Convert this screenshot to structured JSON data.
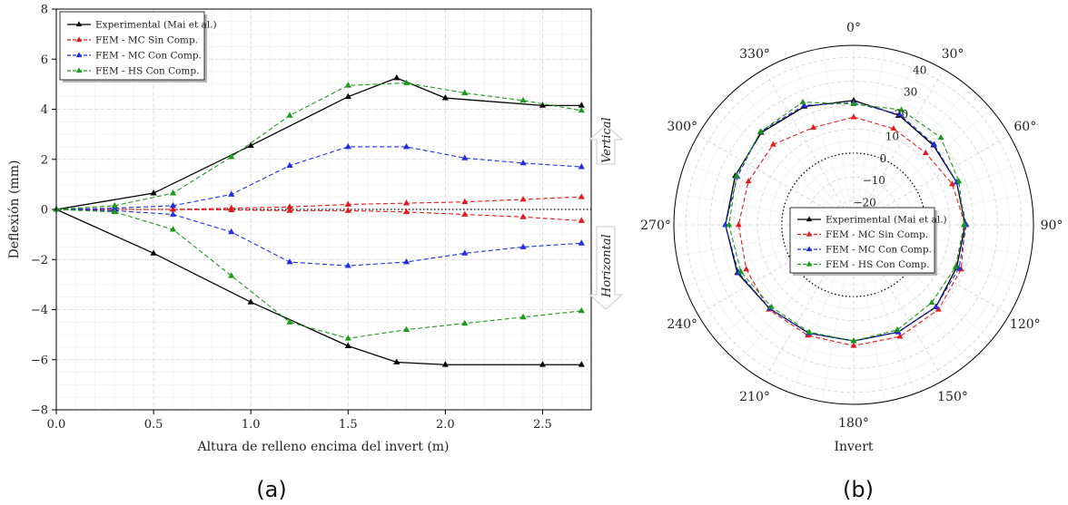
{
  "colors": {
    "experimental": "#000000",
    "mc_sin": "#e41a1c",
    "mc_con": "#1f2fe6",
    "hs_con": "#1a9a1a"
  },
  "chart_data": [
    {
      "type": "line",
      "panel_label": "(a)",
      "xlabel": "Altura de relleno encima del invert (m)",
      "ylabel": "Deflexión (mm)",
      "xlim": [
        0,
        2.75
      ],
      "ylim": [
        -8,
        8
      ],
      "xticks": [
        0.0,
        0.5,
        1.0,
        1.5,
        2.0,
        2.5
      ],
      "xtick_labels": [
        "0.0",
        "0.5",
        "1.0",
        "1.5",
        "2.0",
        "2.5"
      ],
      "yticks": [
        -8,
        -6,
        -4,
        -2,
        0,
        2,
        4,
        6,
        8
      ],
      "ytick_labels": [
        "−8",
        "−6",
        "−4",
        "−2",
        "0",
        "2",
        "4",
        "6",
        "8"
      ],
      "grid": true,
      "legend_position": "top-left",
      "annotations": {
        "vertical": "Vertical",
        "horizontal": "Horizontal"
      },
      "series": [
        {
          "name": "Experimental (Mai et al.)",
          "color_key": "experimental",
          "dash": "solid",
          "groups": [
            {
              "x": [
                0,
                0.5,
                1.0,
                1.5,
                1.75,
                2.0,
                2.5,
                2.7
              ],
              "y": [
                0,
                0.65,
                2.55,
                4.5,
                5.25,
                4.45,
                4.15,
                4.15
              ]
            },
            {
              "x": [
                0,
                0.5,
                1.0,
                1.5,
                1.75,
                2.0,
                2.5,
                2.7
              ],
              "y": [
                0,
                -1.75,
                -3.7,
                -5.45,
                -6.1,
                -6.2,
                -6.2,
                -6.2
              ]
            }
          ]
        },
        {
          "name": "FEM - MC Sin Comp.",
          "color_key": "mc_sin",
          "dash": "dashed",
          "groups": [
            {
              "x": [
                0,
                0.3,
                0.6,
                0.9,
                1.2,
                1.5,
                1.8,
                2.1,
                2.4,
                2.7
              ],
              "y": [
                0,
                0.0,
                0.0,
                0.05,
                0.1,
                0.2,
                0.25,
                0.3,
                0.4,
                0.5
              ]
            },
            {
              "x": [
                0,
                0.3,
                0.6,
                0.9,
                1.2,
                1.5,
                1.8,
                2.1,
                2.4,
                2.7
              ],
              "y": [
                0,
                0.0,
                0.0,
                -0.02,
                -0.05,
                -0.05,
                -0.1,
                -0.2,
                -0.3,
                -0.45
              ]
            }
          ]
        },
        {
          "name": "FEM - MC Con Comp.",
          "color_key": "mc_con",
          "dash": "dashed",
          "groups": [
            {
              "x": [
                0,
                0.3,
                0.6,
                0.9,
                1.2,
                1.5,
                1.8,
                2.1,
                2.4,
                2.7
              ],
              "y": [
                0,
                0.05,
                0.15,
                0.6,
                1.75,
                2.5,
                2.5,
                2.05,
                1.85,
                1.7
              ]
            },
            {
              "x": [
                0,
                0.3,
                0.6,
                0.9,
                1.2,
                1.5,
                1.8,
                2.1,
                2.4,
                2.7
              ],
              "y": [
                0,
                -0.05,
                -0.2,
                -0.9,
                -2.1,
                -2.25,
                -2.1,
                -1.75,
                -1.5,
                -1.35
              ]
            }
          ]
        },
        {
          "name": "FEM - HS Con Comp.",
          "color_key": "hs_con",
          "dash": "dashed",
          "groups": [
            {
              "x": [
                0,
                0.3,
                0.6,
                0.9,
                1.2,
                1.5,
                1.8,
                2.1,
                2.4,
                2.7
              ],
              "y": [
                0,
                0.15,
                0.65,
                2.1,
                3.75,
                4.95,
                5.05,
                4.65,
                4.35,
                3.95
              ]
            },
            {
              "x": [
                0,
                0.3,
                0.6,
                0.9,
                1.2,
                1.5,
                1.8,
                2.1,
                2.4,
                2.7
              ],
              "y": [
                0,
                -0.1,
                -0.8,
                -2.65,
                -4.5,
                -5.15,
                -4.8,
                -4.55,
                -4.3,
                -4.05
              ]
            }
          ]
        }
      ]
    },
    {
      "type": "polar",
      "panel_label": "(b)",
      "xlabel": "Invert",
      "rlim": [
        -30,
        45
      ],
      "rticks": [
        -20,
        -10,
        0,
        10,
        20,
        30,
        40
      ],
      "rtick_labels": [
        "−20",
        "−10",
        "0",
        "10",
        "20",
        "30",
        "40"
      ],
      "theta_direction": "clockwise",
      "theta_zero": "top",
      "angle_labels": [
        "0°",
        "30°",
        "60°",
        "90°",
        "120°",
        "150°",
        "180°",
        "210°",
        "240°",
        "270°",
        "300°",
        "330°"
      ],
      "angles_deg": [
        0,
        22.5,
        45,
        67.5,
        90,
        112.5,
        135,
        157.5,
        180,
        202.5,
        225,
        247.5,
        270,
        292.5,
        315,
        337.5
      ],
      "grid": true,
      "legend_position": "center",
      "series": [
        {
          "name": "Experimental (Mai et al.)",
          "color_key": "experimental",
          "dash": "solid",
          "r": [
            22,
            19.5,
            17,
            16.5,
            16.5,
            16.5,
            18.5,
            18.5,
            18.5,
            19,
            19.5,
            22.5,
            23.5,
            23.5,
            24.5,
            23.5
          ]
        },
        {
          "name": "FEM - MC Sin Comp.",
          "color_key": "mc_sin",
          "dash": "dashed",
          "r": [
            15,
            13.5,
            12.5,
            14.5,
            16.5,
            18.5,
            20,
            20.5,
            20.5,
            20,
            20,
            18.5,
            18,
            17.5,
            17.5,
            14
          ]
        },
        {
          "name": "FEM - MC Con Comp.",
          "color_key": "mc_con",
          "dash": "dashed",
          "r": [
            21,
            20,
            17.5,
            16.5,
            17,
            17.5,
            18.5,
            18.5,
            18.5,
            19,
            19.5,
            22,
            23.5,
            22.5,
            25,
            24
          ]
        },
        {
          "name": "FEM - HS Con Comp.",
          "color_key": "hs_con",
          "dash": "dashed",
          "r": [
            20.5,
            22,
            21.5,
            17.5,
            16,
            16,
            16,
            17.5,
            18.5,
            18.5,
            18.5,
            21,
            22,
            23,
            25,
            25.5
          ]
        }
      ]
    }
  ]
}
